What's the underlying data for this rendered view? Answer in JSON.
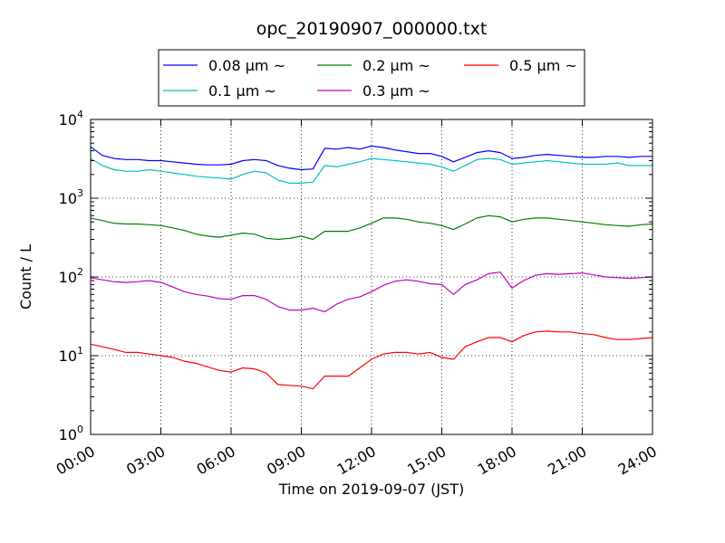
{
  "chart_data": {
    "type": "line",
    "title": "opc_20190907_000000.txt",
    "xlabel": "Time on 2019-09-07 (JST)",
    "ylabel": "Count / L",
    "yscale": "log",
    "xlim": [
      "00:00",
      "24:00"
    ],
    "ylim": [
      1,
      10000
    ],
    "x_unit": "hours since 00:00",
    "x_ticks": [
      "00:00",
      "03:00",
      "06:00",
      "09:00",
      "12:00",
      "15:00",
      "18:00",
      "21:00",
      "24:00"
    ],
    "y_ticks": [
      {
        "base": "10",
        "exp": "0"
      },
      {
        "base": "10",
        "exp": "1"
      },
      {
        "base": "10",
        "exp": "2"
      },
      {
        "base": "10",
        "exp": "3"
      },
      {
        "base": "10",
        "exp": "4"
      }
    ],
    "grid": true,
    "legend_position": "top-center, above axes, 3 columns",
    "x": [
      0,
      0.5,
      1,
      1.5,
      2,
      2.5,
      3,
      3.5,
      4,
      4.5,
      5,
      5.5,
      6,
      6.5,
      7,
      7.5,
      8,
      8.5,
      9,
      9.5,
      10,
      10.5,
      11,
      11.5,
      12,
      12.5,
      13,
      13.5,
      14,
      14.5,
      15,
      15.5,
      16,
      16.5,
      17,
      17.5,
      18,
      18.5,
      19,
      19.5,
      20,
      20.5,
      21,
      21.5,
      22,
      22.5,
      23,
      23.5,
      24
    ],
    "series": [
      {
        "name": "0.08 μm ~",
        "color": "#0000ff",
        "values": [
          4500,
          3500,
          3200,
          3100,
          3100,
          3000,
          3000,
          2900,
          2800,
          2700,
          2650,
          2650,
          2700,
          3000,
          3100,
          3000,
          2600,
          2400,
          2300,
          2350,
          4300,
          4200,
          4400,
          4200,
          4600,
          4400,
          4100,
          3900,
          3700,
          3700,
          3400,
          2900,
          3300,
          3800,
          4000,
          3800,
          3200,
          3300,
          3500,
          3600,
          3500,
          3400,
          3300,
          3300,
          3400,
          3400,
          3300,
          3400,
          3400
        ]
      },
      {
        "name": "0.1 μm ~",
        "color": "#00bfbf",
        "values": [
          3200,
          2600,
          2300,
          2200,
          2200,
          2300,
          2200,
          2100,
          2000,
          1900,
          1850,
          1800,
          1750,
          2000,
          2200,
          2100,
          1700,
          1550,
          1550,
          1600,
          2600,
          2500,
          2700,
          2900,
          3200,
          3100,
          3000,
          2900,
          2800,
          2700,
          2500,
          2200,
          2600,
          3100,
          3200,
          3100,
          2700,
          2800,
          2900,
          3000,
          2900,
          2800,
          2700,
          2700,
          2700,
          2800,
          2600,
          2600,
          2600
        ]
      },
      {
        "name": "0.2 μm ~",
        "color": "#008000",
        "values": [
          560,
          520,
          480,
          470,
          470,
          460,
          450,
          420,
          390,
          350,
          330,
          320,
          340,
          360,
          350,
          310,
          300,
          310,
          330,
          300,
          380,
          380,
          380,
          420,
          480,
          560,
          560,
          540,
          500,
          480,
          450,
          400,
          470,
          560,
          600,
          580,
          500,
          540,
          560,
          560,
          540,
          520,
          500,
          480,
          460,
          450,
          440,
          460,
          470
        ]
      },
      {
        "name": "0.3 μm ~",
        "color": "#bf00bf",
        "values": [
          98,
          92,
          87,
          85,
          87,
          90,
          85,
          75,
          65,
          60,
          57,
          53,
          52,
          58,
          58,
          52,
          42,
          38,
          38,
          40,
          36,
          45,
          52,
          56,
          65,
          78,
          88,
          92,
          88,
          82,
          80,
          60,
          80,
          92,
          110,
          115,
          72,
          90,
          105,
          110,
          108,
          110,
          112,
          106,
          100,
          98,
          96,
          98,
          100
        ]
      },
      {
        "name": "0.5 μm ~",
        "color": "#ff0000",
        "values": [
          14,
          13,
          12,
          11,
          11,
          10.5,
          10,
          9.5,
          8.5,
          8,
          7.2,
          6.5,
          6.2,
          7,
          6.8,
          6,
          4.3,
          4.2,
          4.1,
          3.8,
          5.5,
          5.5,
          5.5,
          7,
          9,
          10.5,
          11,
          11,
          10.5,
          11,
          9.5,
          9,
          13,
          15,
          17,
          17,
          15,
          18,
          20,
          20.5,
          20,
          20,
          19,
          18.5,
          17,
          16,
          16,
          16.5,
          17
        ]
      }
    ]
  }
}
